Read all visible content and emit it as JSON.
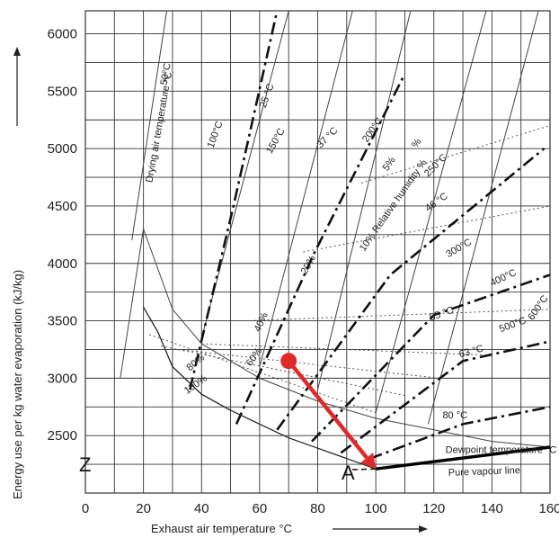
{
  "chart_data": {
    "type": "line",
    "xlabel": "Exhaust air temperature °C",
    "ylabel": "Energy use per kg water evaporation (kJ/kg)",
    "xlim": [
      0,
      160
    ],
    "ylim": [
      2000,
      6200
    ],
    "x_ticks": [
      0,
      20,
      40,
      60,
      80,
      100,
      120,
      140,
      160
    ],
    "y_ticks": [
      2500,
      3000,
      3500,
      4000,
      4500,
      5000,
      5500,
      6000
    ],
    "grid": true,
    "axis_break_symbol": "Z",
    "point_label": "A",
    "arrow": {
      "from": [
        70,
        3150
      ],
      "to": [
        100,
        2210
      ],
      "color": "#e02a2a"
    },
    "marker": {
      "x": 70,
      "y": 3150,
      "color": "#e02a2a"
    },
    "pure_vapour_line": {
      "label": "Pure vapour line",
      "x": [
        100,
        160
      ],
      "y": [
        2210,
        2400
      ]
    },
    "dewpoint_curve": {
      "label": "Dewpoint temperature °C",
      "x": [
        20,
        25,
        30,
        40,
        50,
        60,
        70,
        80,
        90,
        100
      ],
      "y": [
        3620,
        3400,
        3100,
        2860,
        2720,
        2600,
        2480,
        2390,
        2300,
        2210
      ]
    },
    "dewpoint_lines": [
      {
        "label": "25 °C",
        "x": [
          36,
          51,
          66
        ],
        "y": [
          2900,
          4500,
          6200
        ]
      },
      {
        "label": "37 °C",
        "x": [
          52,
          79,
          110
        ],
        "y": [
          2600,
          4100,
          5650
        ]
      },
      {
        "label": "46 °C",
        "x": [
          66,
          105,
          158
        ],
        "y": [
          2550,
          3900,
          5000
        ]
      },
      {
        "label": "55 °C",
        "x": [
          78,
          120,
          160
        ],
        "y": [
          2450,
          3550,
          3900
        ]
      },
      {
        "label": "63 °C",
        "x": [
          88,
          130,
          160
        ],
        "y": [
          2350,
          3150,
          3320
        ]
      },
      {
        "label": "80 °C",
        "x": [
          98,
          130,
          160
        ],
        "y": [
          2300,
          2600,
          2750
        ]
      }
    ],
    "drying_temp_lines": [
      {
        "label": "Drying air temperature °C",
        "x": [
          12,
          20,
          30,
          40,
          60,
          80,
          100,
          120,
          140,
          160
        ],
        "y": [
          3000,
          4300,
          3600,
          3300,
          3000,
          2800,
          2650,
          2550,
          2450,
          2400
        ]
      },
      {
        "label": "50°C",
        "x": [
          16,
          28
        ],
        "y": [
          4200,
          6200
        ]
      },
      {
        "label": "100°C",
        "x": [
          40,
          70
        ],
        "y": [
          3350,
          6200
        ]
      },
      {
        "label": "150°C",
        "x": [
          60,
          92
        ],
        "y": [
          3100,
          6200
        ]
      },
      {
        "label": "200°C",
        "x": [
          80,
          112
        ],
        "y": [
          2900,
          6200
        ]
      },
      {
        "label": "250°C",
        "x": [
          100,
          138
        ],
        "y": [
          2700,
          6200
        ]
      },
      {
        "label": "300°C",
        "x": [
          118,
          156
        ],
        "y": [
          2600,
          6200
        ]
      }
    ],
    "relative_humidity_lines": [
      {
        "label": "100%",
        "x": [
          22,
          100
        ],
        "y": [
          3380,
          2700
        ]
      },
      {
        "label": "80%",
        "x": [
          26,
          110
        ],
        "y": [
          3280,
          2850
        ]
      },
      {
        "label": "60%",
        "x": [
          32,
          122
        ],
        "y": [
          3250,
          3000
        ]
      },
      {
        "label": "40%",
        "x": [
          40,
          140
        ],
        "y": [
          3300,
          3200
        ]
      },
      {
        "label": "20%",
        "x": [
          55,
          160
        ],
        "y": [
          3500,
          3600
        ]
      },
      {
        "label": "10% Relative humidity %",
        "x": [
          75,
          160
        ],
        "y": [
          4100,
          4500
        ]
      },
      {
        "label": "5%",
        "x": [
          95,
          160
        ],
        "y": [
          4700,
          5200
        ]
      }
    ],
    "temperature_labels": [
      "400°C",
      "500°C",
      "600°C"
    ],
    "annotations": [
      {
        "text": "50°C",
        "x": 28,
        "y": 5550,
        "rot": -80
      },
      {
        "text": "25 °C",
        "x": 62,
        "y": 5350,
        "rot": -70
      },
      {
        "text": "100°C",
        "x": 44,
        "y": 5000,
        "rot": -70
      },
      {
        "text": "150°C",
        "x": 64,
        "y": 4950,
        "rot": -60
      },
      {
        "text": "37 °C",
        "x": 81,
        "y": 5000,
        "rot": -45
      },
      {
        "text": "200°C",
        "x": 97,
        "y": 5050,
        "rot": -55
      },
      {
        "text": "%",
        "x": 114,
        "y": 5000,
        "rot": -55
      },
      {
        "text": "5%",
        "x": 104,
        "y": 4800,
        "rot": -55
      },
      {
        "text": "250°C",
        "x": 118,
        "y": 4750,
        "rot": -45
      },
      {
        "text": "46 °C",
        "x": 118,
        "y": 4450,
        "rot": -35
      },
      {
        "text": "300°C",
        "x": 125,
        "y": 4050,
        "rot": -30
      },
      {
        "text": "20%",
        "x": 76,
        "y": 3900,
        "rot": -60
      },
      {
        "text": "10% Relative humidity %",
        "x": 96,
        "y": 4100,
        "rot": -55
      },
      {
        "text": "400°C",
        "x": 140,
        "y": 3800,
        "rot": -25
      },
      {
        "text": "55 °C",
        "x": 119,
        "y": 3500,
        "rot": -20
      },
      {
        "text": "500°C",
        "x": 143,
        "y": 3400,
        "rot": -20
      },
      {
        "text": "600°C",
        "x": 154,
        "y": 3500,
        "rot": -55
      },
      {
        "text": "63 °C",
        "x": 129,
        "y": 3180,
        "rot": -15
      },
      {
        "text": "40%",
        "x": 60,
        "y": 3400,
        "rot": -65
      },
      {
        "text": "60%",
        "x": 57,
        "y": 3100,
        "rot": -55
      },
      {
        "text": "80%",
        "x": 36,
        "y": 3060,
        "rot": -40
      },
      {
        "text": "100%",
        "x": 35,
        "y": 2860,
        "rot": -35
      },
      {
        "text": "Drying air temperature °C",
        "x": 23,
        "y": 4700,
        "rot": -80
      },
      {
        "text": "80 °C",
        "x": 123,
        "y": 2650,
        "rot": 0
      },
      {
        "text": "Dewpoint temperature °C",
        "x": 124,
        "y": 2350,
        "rot": 0
      },
      {
        "text": "Pure vapour line",
        "x": 125,
        "y": 2150,
        "rot": -2
      }
    ],
    "colors": {
      "grid": "#333333",
      "curve": "#444444",
      "highlight": "#e02a2a"
    }
  }
}
